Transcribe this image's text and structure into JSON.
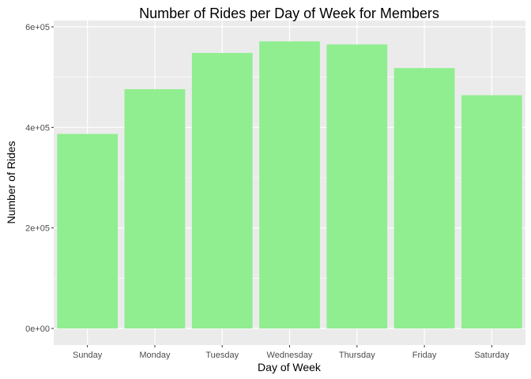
{
  "chart_data": {
    "type": "bar",
    "title": "Number of Rides per Day of Week for Members",
    "xlabel": "Day of Week",
    "ylabel": "Number of Rides",
    "categories": [
      "Sunday",
      "Monday",
      "Tuesday",
      "Wednesday",
      "Thursday",
      "Friday",
      "Saturday"
    ],
    "values": [
      387000,
      476000,
      548000,
      571000,
      565000,
      518000,
      464000
    ],
    "ylim": [
      0,
      600000
    ],
    "yticks": [
      0,
      200000,
      400000,
      600000
    ],
    "ytick_labels": [
      "0e+00",
      "2e+05",
      "4e+05",
      "6e+05"
    ],
    "grid": true,
    "legend": "none",
    "colors": {
      "bar": "#90ee90",
      "panel": "#ebebeb",
      "grid": "#ffffff",
      "tick": "#333333"
    }
  }
}
